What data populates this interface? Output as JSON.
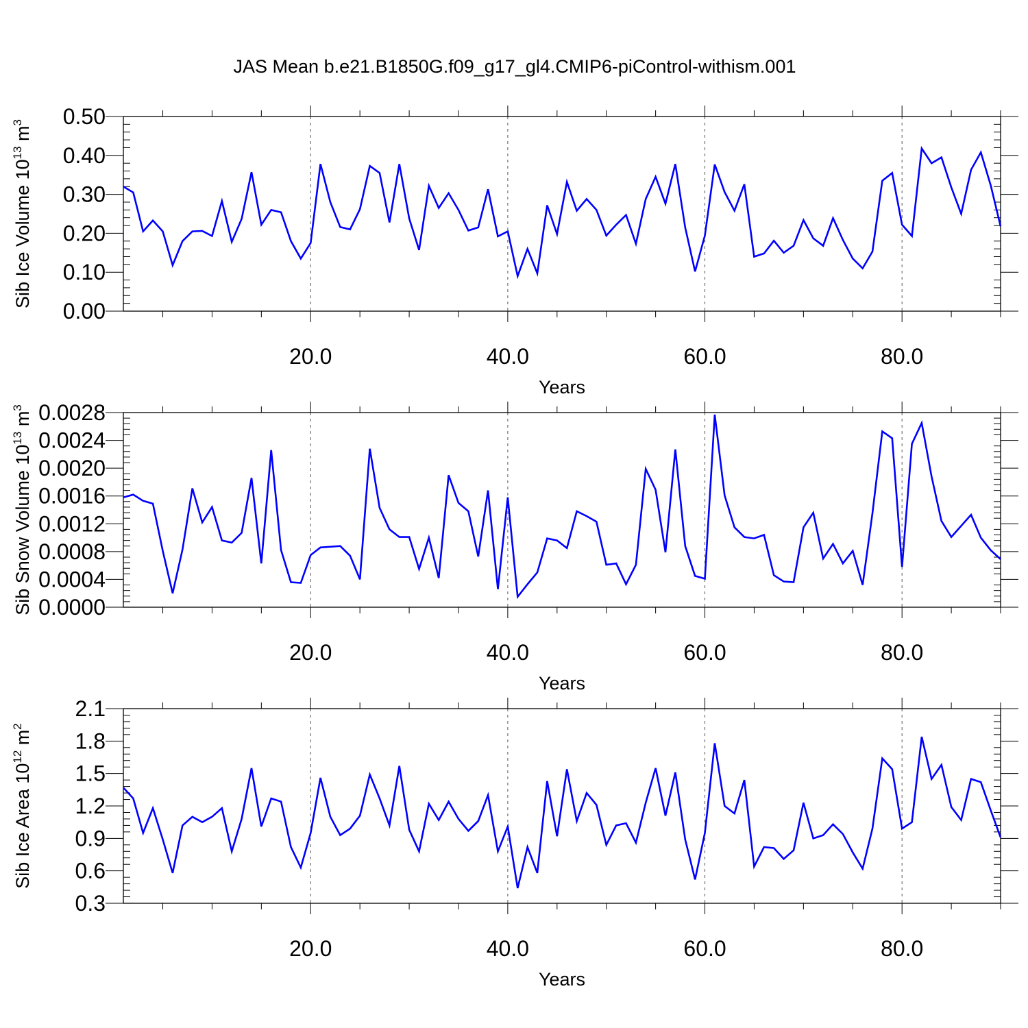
{
  "title": "JAS Mean b.e21.B1850G.f09_g17_gl4.CMIP6-piControl-withism.001",
  "line_color": "#0000ff",
  "chart_data": [
    {
      "type": "line",
      "title": "JAS Mean b.e21.B1850G.f09_g17_gl4.CMIP6-piControl-withism.001",
      "xlabel": "Years",
      "ylabel": "Sib Ice Volume 10",
      "ylabel_exp": "13",
      "ylabel_unit": " m",
      "ylabel_unit_exp": "3",
      "xlim": [
        1,
        90
      ],
      "ylim": [
        0,
        0.5
      ],
      "grid": "x-dashed",
      "x_ticks": [
        20,
        40,
        60,
        80
      ],
      "x_tick_labels": [
        "20.0",
        "40.0",
        "60.0",
        "80.0"
      ],
      "y_ticks": [
        0,
        0.1,
        0.2,
        0.3,
        0.4,
        0.5
      ],
      "y_tick_labels": [
        "0.00",
        "0.10",
        "0.20",
        "0.30",
        "0.40",
        "0.50"
      ],
      "x_start": 1,
      "values": [
        0.32,
        0.305,
        0.205,
        0.233,
        0.205,
        0.118,
        0.18,
        0.205,
        0.206,
        0.193,
        0.283,
        0.178,
        0.237,
        0.357,
        0.222,
        0.26,
        0.254,
        0.18,
        0.135,
        0.175,
        0.378,
        0.28,
        0.216,
        0.21,
        0.262,
        0.373,
        0.355,
        0.228,
        0.378,
        0.238,
        0.157,
        0.322,
        0.265,
        0.303,
        0.26,
        0.207,
        0.215,
        0.313,
        0.192,
        0.205,
        0.09,
        0.16,
        0.097,
        0.272,
        0.198,
        0.332,
        0.258,
        0.288,
        0.26,
        0.194,
        0.222,
        0.247,
        0.173,
        0.288,
        0.345,
        0.276,
        0.378,
        0.215,
        0.102,
        0.194,
        0.377,
        0.306,
        0.258,
        0.326,
        0.14,
        0.148,
        0.181,
        0.15,
        0.168,
        0.234,
        0.187,
        0.168,
        0.239,
        0.183,
        0.135,
        0.11,
        0.153,
        0.335,
        0.355,
        0.222,
        0.193,
        0.418,
        0.38,
        0.395,
        0.318,
        0.25,
        0.363,
        0.408,
        0.323,
        0.218
      ]
    },
    {
      "type": "line",
      "xlabel": "Years",
      "ylabel": "Sib Snow Volume 10",
      "ylabel_exp": "13",
      "ylabel_unit": " m",
      "ylabel_unit_exp": "3",
      "xlim": [
        1,
        90
      ],
      "ylim": [
        0,
        0.0028
      ],
      "grid": "x-dashed",
      "x_ticks": [
        20,
        40,
        60,
        80
      ],
      "x_tick_labels": [
        "20.0",
        "40.0",
        "60.0",
        "80.0"
      ],
      "y_ticks": [
        0,
        0.0004,
        0.0008,
        0.0012,
        0.0016,
        0.002,
        0.0024,
        0.0028
      ],
      "y_tick_labels": [
        "0.0000",
        "0.0004",
        "0.0008",
        "0.0012",
        "0.0016",
        "0.0020",
        "0.0024",
        "0.0028"
      ],
      "x_start": 1,
      "values": [
        0.00158,
        0.00162,
        0.00153,
        0.00149,
        0.00081,
        0.0002,
        0.00083,
        0.00171,
        0.00122,
        0.00144,
        0.00096,
        0.00093,
        0.00107,
        0.00186,
        0.00063,
        0.00226,
        0.00082,
        0.00036,
        0.00035,
        0.00075,
        0.00086,
        0.00087,
        0.00088,
        0.00074,
        0.0004,
        0.00228,
        0.00143,
        0.00112,
        0.00101,
        0.00101,
        0.00055,
        0.001,
        0.00042,
        0.0019,
        0.0015,
        0.00138,
        0.00073,
        0.00168,
        0.00026,
        0.00158,
        0.00015,
        0.00033,
        0.0005,
        0.00099,
        0.00096,
        0.00085,
        0.00138,
        0.00131,
        0.00123,
        0.00061,
        0.00063,
        0.00033,
        0.00061,
        0.00199,
        0.00169,
        0.00079,
        0.00227,
        0.00088,
        0.00045,
        0.00041,
        0.00277,
        0.00161,
        0.00115,
        0.00101,
        0.00099,
        0.00104,
        0.00046,
        0.00037,
        0.00036,
        0.00115,
        0.00136,
        0.0007,
        0.00091,
        0.00063,
        0.00081,
        0.00032,
        0.00135,
        0.00253,
        0.00243,
        0.00058,
        0.00235,
        0.00265,
        0.00188,
        0.00124,
        0.00101,
        0.00117,
        0.00133,
        0.001,
        0.00082,
        0.00069
      ]
    },
    {
      "type": "line",
      "xlabel": "Years",
      "ylabel": "Sib Ice Area 10",
      "ylabel_exp": "12",
      "ylabel_unit": " m",
      "ylabel_unit_exp": "2",
      "xlim": [
        1,
        90
      ],
      "ylim": [
        0.3,
        2.1
      ],
      "grid": "x-dashed",
      "x_ticks": [
        20,
        40,
        60,
        80
      ],
      "x_tick_labels": [
        "20.0",
        "40.0",
        "60.0",
        "80.0"
      ],
      "y_ticks": [
        0.3,
        0.6,
        0.9,
        1.2,
        1.5,
        1.8,
        2.1
      ],
      "y_tick_labels": [
        "0.3",
        "0.6",
        "0.9",
        "1.2",
        "1.5",
        "1.8",
        "2.1"
      ],
      "x_start": 1,
      "values": [
        1.37,
        1.27,
        0.95,
        1.18,
        0.89,
        0.58,
        1.02,
        1.1,
        1.05,
        1.1,
        1.18,
        0.78,
        1.08,
        1.55,
        1.01,
        1.27,
        1.24,
        0.82,
        0.63,
        0.95,
        1.46,
        1.1,
        0.93,
        0.99,
        1.11,
        1.49,
        1.27,
        1.02,
        1.57,
        0.98,
        0.78,
        1.22,
        1.07,
        1.24,
        1.08,
        0.97,
        1.06,
        1.3,
        0.78,
        1.01,
        0.44,
        0.82,
        0.58,
        1.43,
        0.92,
        1.54,
        1.06,
        1.32,
        1.21,
        0.84,
        1.02,
        1.04,
        0.86,
        1.23,
        1.55,
        1.11,
        1.51,
        0.89,
        0.52,
        0.95,
        1.78,
        1.2,
        1.13,
        1.44,
        0.64,
        0.82,
        0.81,
        0.71,
        0.79,
        1.23,
        0.9,
        0.93,
        1.03,
        0.94,
        0.77,
        0.62,
        0.99,
        1.64,
        1.54,
        0.99,
        1.05,
        1.84,
        1.45,
        1.58,
        1.19,
        1.07,
        1.45,
        1.42,
        1.16,
        0.91
      ]
    }
  ]
}
